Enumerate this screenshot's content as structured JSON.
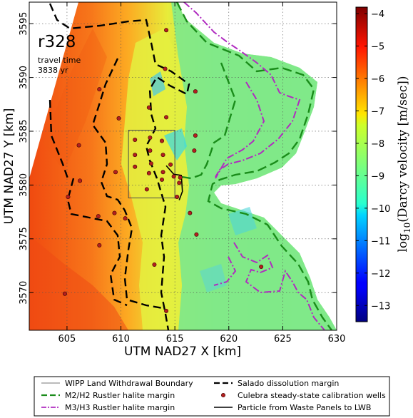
{
  "chart_data": {
    "type": "heatmap",
    "panel_title": "r328",
    "annotation_line1": "travel time",
    "annotation_line2": "3838 yr",
    "xlabel": "UTM NAD27 X [km]",
    "ylabel": "UTM NAD27 Y [km]",
    "xlim": [
      601.5,
      630
    ],
    "ylim": [
      3566.5,
      3597
    ],
    "xticks": [
      605,
      610,
      615,
      620,
      625,
      630
    ],
    "yticks": [
      3570,
      3575,
      3580,
      3585,
      3590,
      3595
    ],
    "grid": true,
    "colorbar": {
      "label": "log10(Darcy velocity [m/sec])",
      "label_prefix": "log",
      "label_sub": "10",
      "label_rest": "(Darcy velocity [m/sec])",
      "range": [
        -13.5,
        -3.8
      ],
      "ticks": [
        -4,
        -5,
        -6,
        -7,
        -8,
        -9,
        -10,
        -11,
        -12,
        -13
      ],
      "tick_labels": [
        "−4",
        "−5",
        "−6",
        "−7",
        "−8",
        "−9",
        "−10",
        "−11",
        "−12",
        "−13"
      ],
      "colormap": "jet"
    },
    "wipp_boundary": {
      "x": [
        610.7,
        615.0
      ],
      "y": [
        3578.8,
        3585.1
      ]
    },
    "calibration_wells": [
      [
        614.2,
        3594.4
      ],
      [
        614.1,
        3590.8
      ],
      [
        616.9,
        3588.7
      ],
      [
        608.0,
        3588.9
      ],
      [
        612.6,
        3587.2
      ],
      [
        614.2,
        3586.3
      ],
      [
        609.8,
        3586.2
      ],
      [
        616.9,
        3584.6
      ],
      [
        612.7,
        3584.4
      ],
      [
        611.3,
        3584.2
      ],
      [
        613.8,
        3584.1
      ],
      [
        606.1,
        3583.7
      ],
      [
        616.8,
        3583.2
      ],
      [
        612.7,
        3583.2
      ],
      [
        611.3,
        3582.8
      ],
      [
        613.9,
        3582.8
      ],
      [
        612.8,
        3582.0
      ],
      [
        614.6,
        3581.9
      ],
      [
        611.3,
        3581.7
      ],
      [
        609.5,
        3581.2
      ],
      [
        613.9,
        3581.2
      ],
      [
        612.6,
        3581.1
      ],
      [
        614.9,
        3580.8
      ],
      [
        615.5,
        3580.7
      ],
      [
        613.8,
        3580.5
      ],
      [
        615.4,
        3580.2
      ],
      [
        606.2,
        3580.4
      ],
      [
        612.4,
        3579.6
      ],
      [
        615.2,
        3578.9
      ],
      [
        605.1,
        3578.9
      ],
      [
        616.4,
        3577.4
      ],
      [
        607.9,
        3577.1
      ],
      [
        609.4,
        3577.4
      ],
      [
        610.4,
        3576.9
      ],
      [
        617.0,
        3575.4
      ],
      [
        608.0,
        3574.4
      ],
      [
        613.1,
        3572.6
      ],
      [
        623.0,
        3572.4
      ],
      [
        604.8,
        3569.9
      ],
      [
        614.2,
        3568.3
      ]
    ],
    "particle_path": [
      [
        614.2,
        3581.8
      ],
      [
        614.9,
        3581.0
      ],
      [
        615.6,
        3580.9
      ],
      [
        615.7,
        3579.4
      ],
      [
        615.4,
        3578.6
      ]
    ],
    "legend": [
      {
        "label": "WIPP Land Withdrawal Boundary",
        "style": "thin-solid",
        "color": "#4a4a4a"
      },
      {
        "label": "Salado dissolution margin",
        "style": "dashed",
        "color": "#000000"
      },
      {
        "label": "M2/H2 Rustler halite margin",
        "style": "dashed",
        "color": "#1a8c1a"
      },
      {
        "label": "Culebra steady-state calibration wells",
        "style": "dot",
        "color": "#b31f1f"
      },
      {
        "label": "M3/H3 Rustler halite margin",
        "style": "dash-dot",
        "color": "#b02cc0"
      },
      {
        "label": "Particle from Waste Panels to LWB",
        "style": "solid",
        "color": "#000000"
      }
    ]
  }
}
